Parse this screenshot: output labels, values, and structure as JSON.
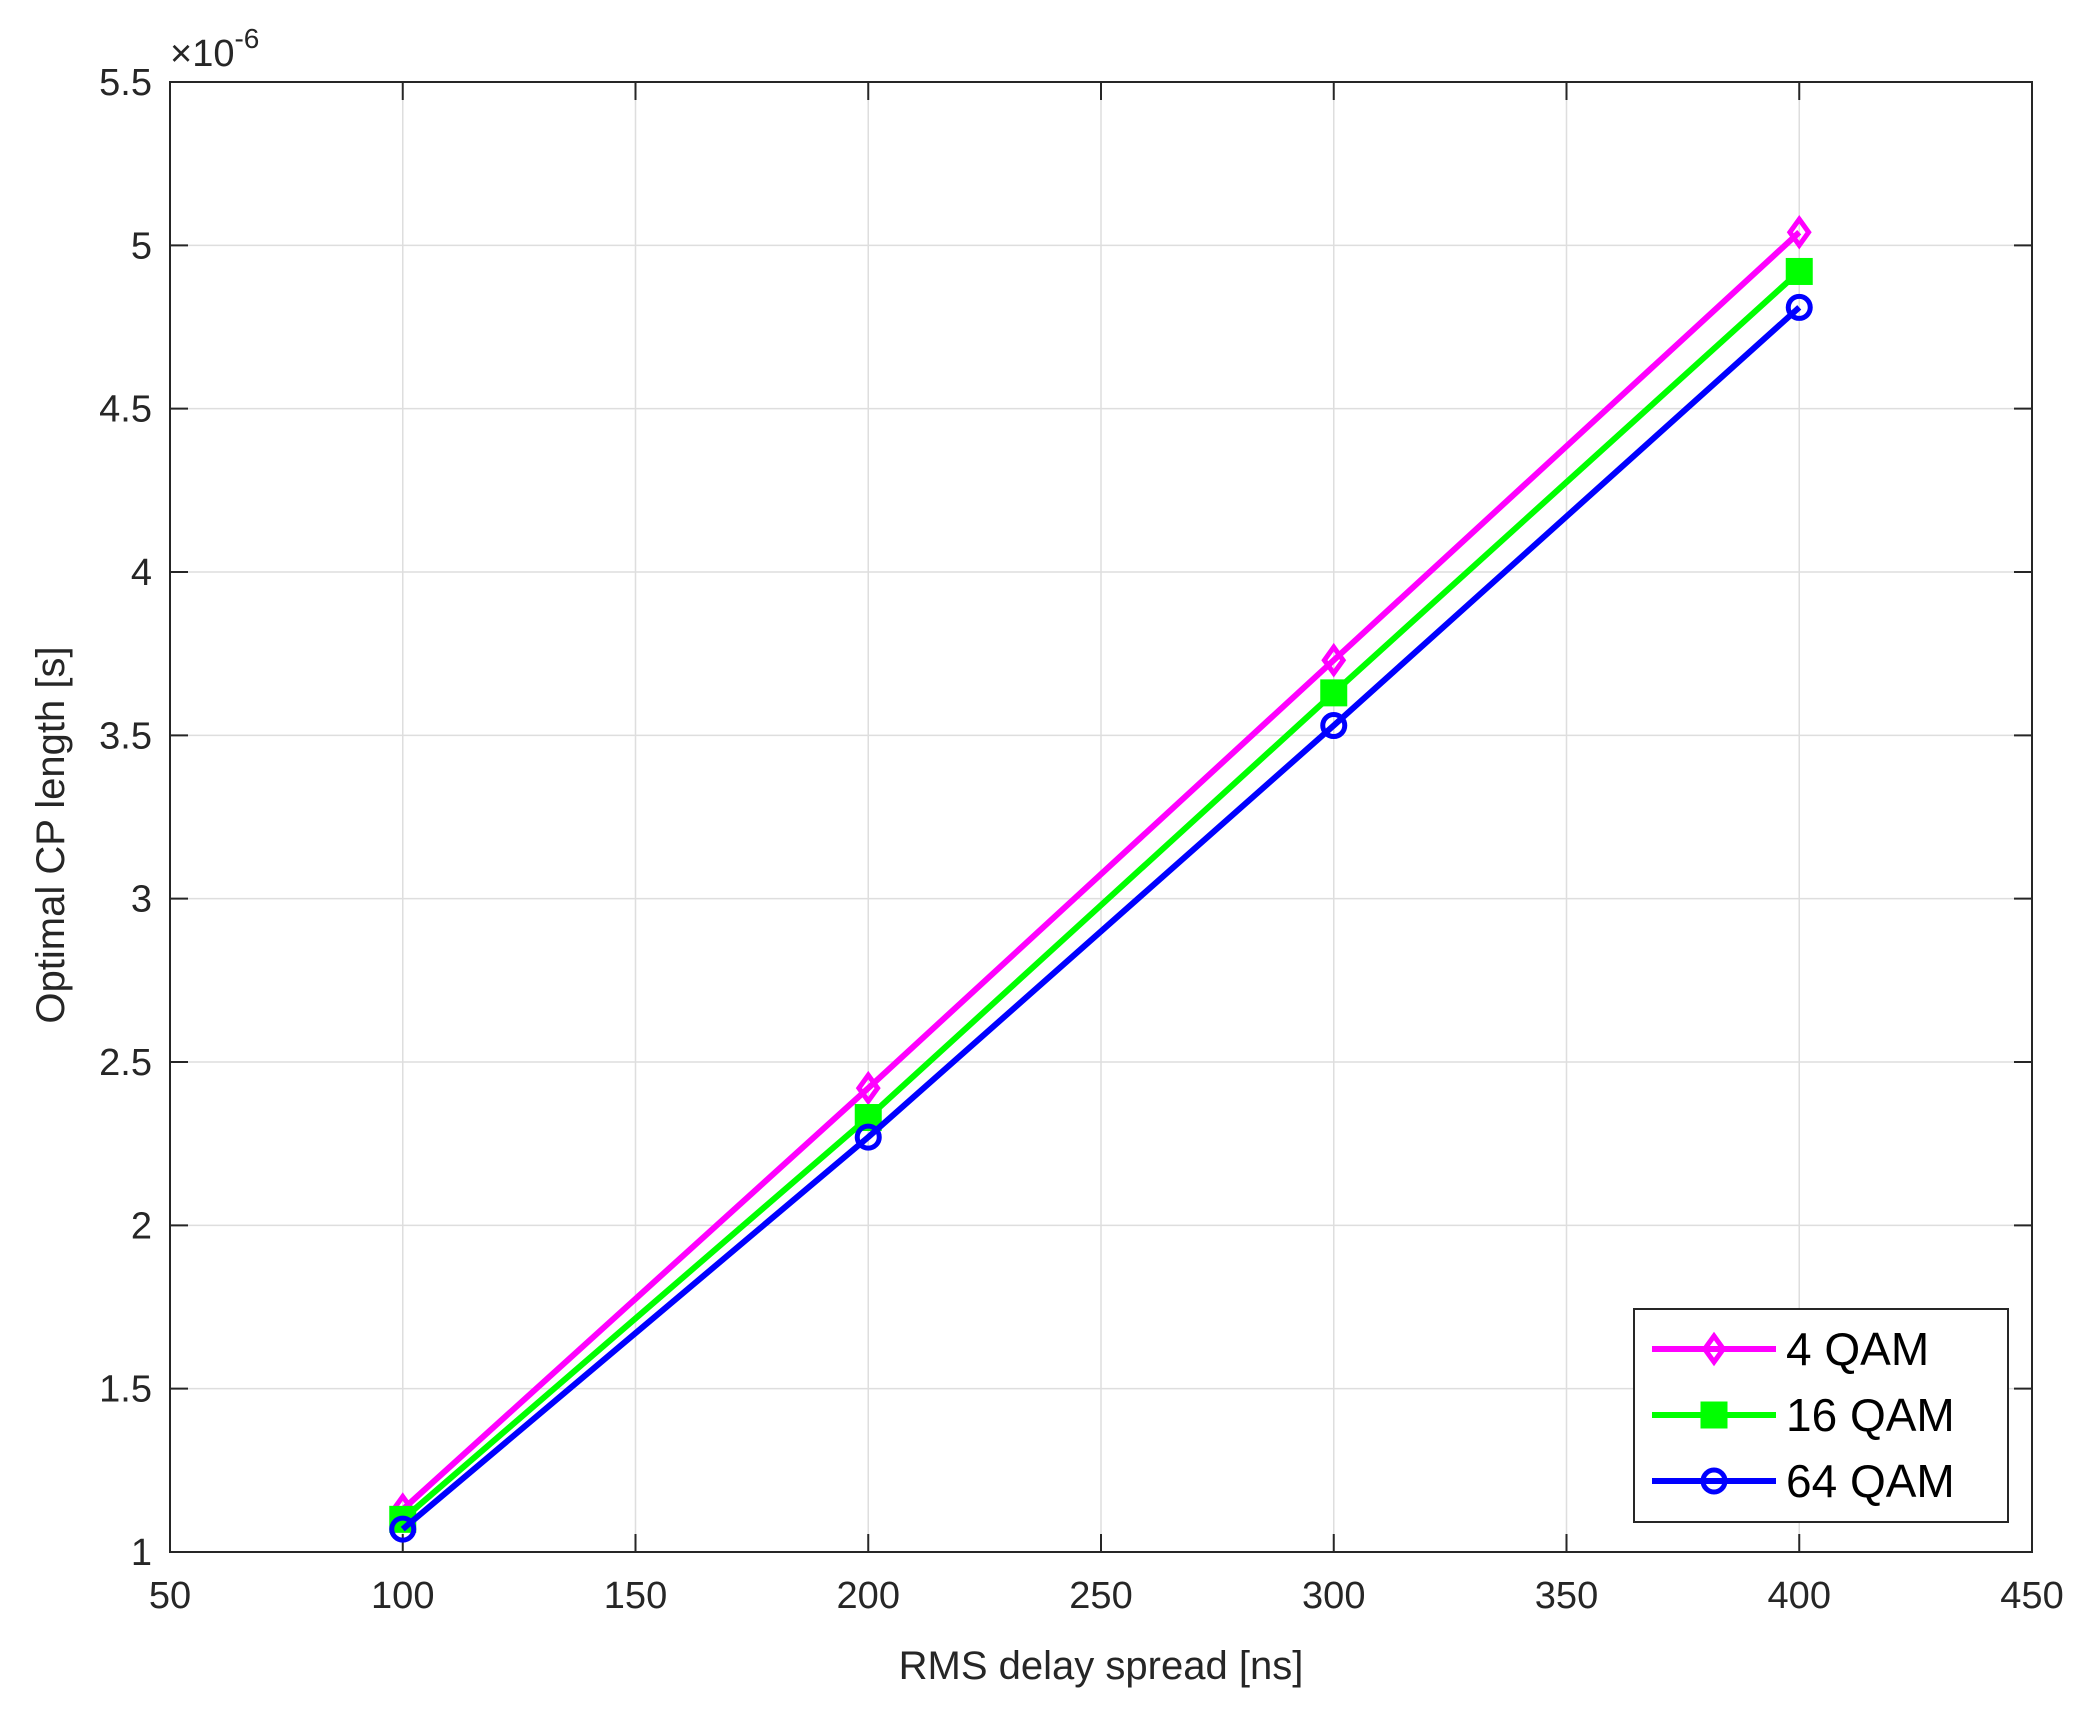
{
  "chart_data": {
    "type": "line",
    "title": "",
    "xlabel": "RMS delay spread [ns]",
    "ylabel": "Optimal CP length [s]",
    "y_multiplier_label": "×10",
    "y_multiplier_exponent": "-6",
    "xlim": [
      50,
      450
    ],
    "ylim": [
      1,
      5.5
    ],
    "x_ticks": [
      50,
      100,
      150,
      200,
      250,
      300,
      350,
      400,
      450
    ],
    "y_ticks": [
      1,
      1.5,
      2,
      2.5,
      3,
      3.5,
      4,
      4.5,
      5,
      5.5
    ],
    "x_tick_labels": [
      "50",
      "100",
      "150",
      "200",
      "250",
      "300",
      "350",
      "400",
      "450"
    ],
    "y_tick_labels": [
      "1",
      "1.5",
      "2",
      "2.5",
      "3",
      "3.5",
      "4",
      "4.5",
      "5",
      "5.5"
    ],
    "grid": true,
    "legend_position": "bottom-right",
    "x": [
      100,
      200,
      300,
      400
    ],
    "series": [
      {
        "name": "4 QAM",
        "color": "#ff00ff",
        "marker": "diamond",
        "values": [
          1.13,
          2.42,
          3.73,
          5.04
        ]
      },
      {
        "name": "16 QAM",
        "color": "#00ff00",
        "marker": "square",
        "values": [
          1.1,
          2.33,
          3.63,
          4.92
        ]
      },
      {
        "name": "64 QAM",
        "color": "#0000ff",
        "marker": "circle",
        "values": [
          1.07,
          2.27,
          3.53,
          4.81
        ]
      }
    ]
  }
}
